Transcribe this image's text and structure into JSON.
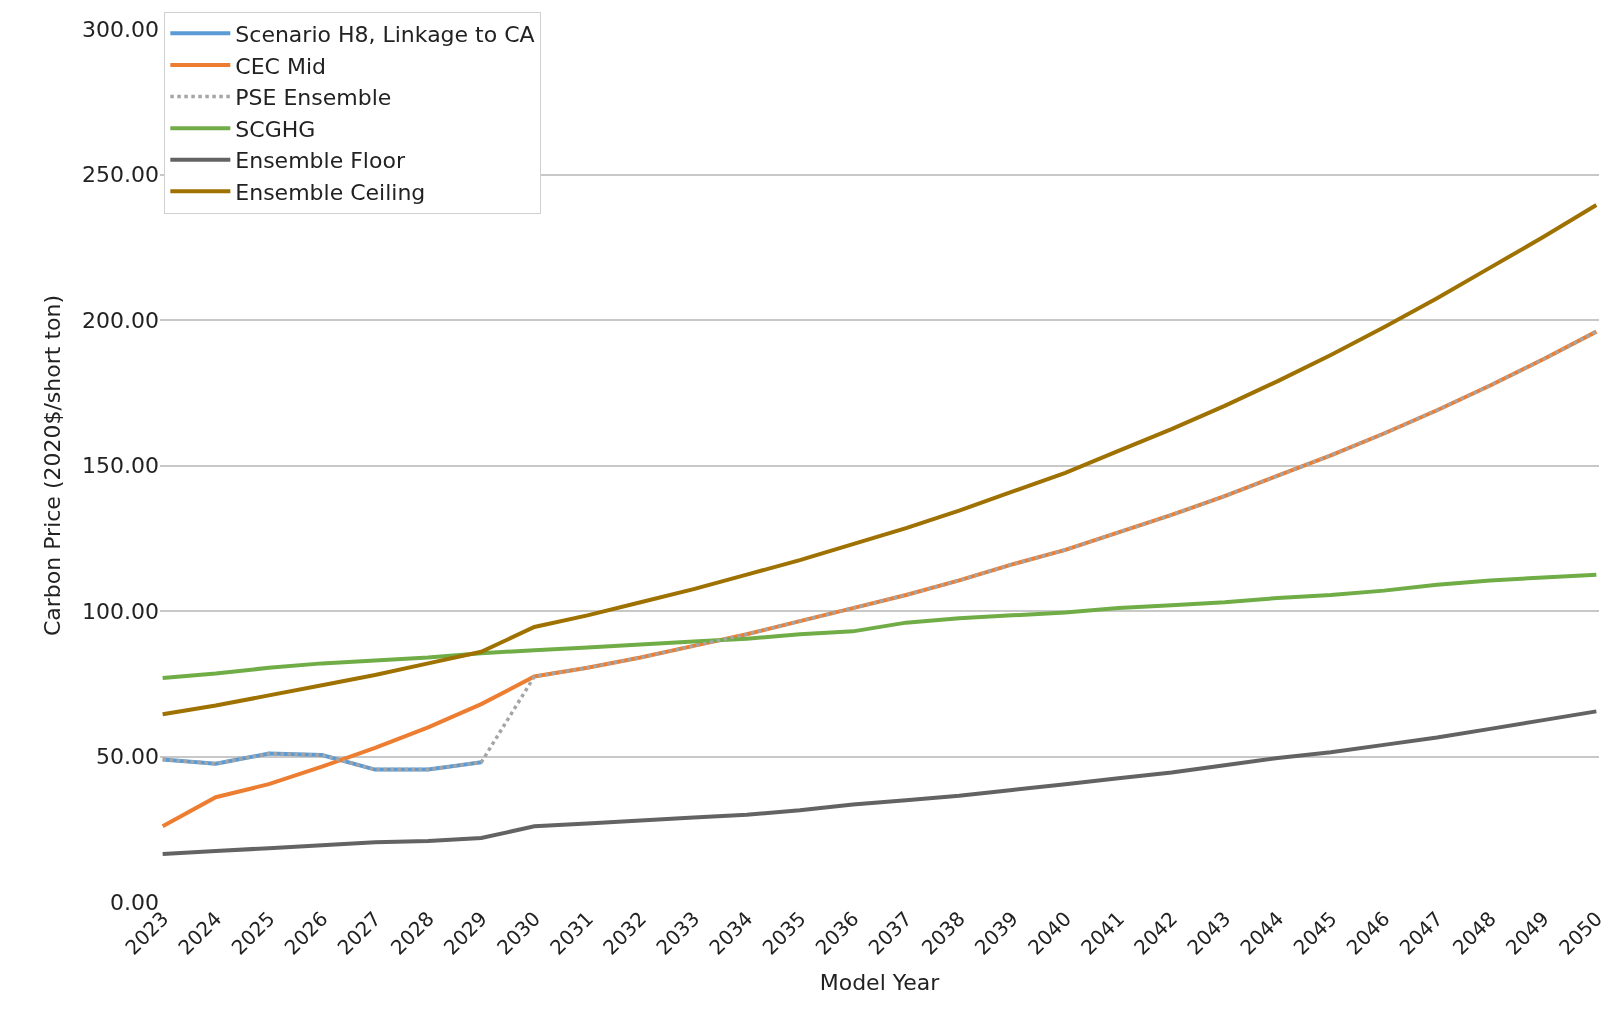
{
  "chart_data": {
    "type": "line",
    "xlabel": "Model Year",
    "ylabel": "Carbon Price (2020$/short ton)",
    "categories": [
      "2023",
      "2024",
      "2025",
      "2026",
      "2027",
      "2028",
      "2029",
      "2030",
      "2031",
      "2032",
      "2033",
      "2034",
      "2035",
      "2036",
      "2037",
      "2038",
      "2039",
      "2040",
      "2041",
      "2042",
      "2043",
      "2044",
      "2045",
      "2046",
      "2047",
      "2048",
      "2049",
      "2050"
    ],
    "series": [
      {
        "name": "Scenario H8, Linkage to CA",
        "color": "#5b9bd5",
        "values": [
          49,
          47.5,
          51,
          50.5,
          45.5,
          45.5,
          48,
          null,
          null,
          null,
          null,
          null,
          null,
          null,
          null,
          null,
          null,
          null,
          null,
          null,
          null,
          null,
          null,
          null,
          null,
          null,
          null,
          null
        ]
      },
      {
        "name": "CEC Mid",
        "color": "#ed7d31",
        "values": [
          26,
          36,
          40.5,
          46.5,
          53,
          60,
          68,
          77.5,
          80.5,
          84,
          88,
          92,
          96.5,
          101,
          105.5,
          110.5,
          116,
          121,
          127,
          133,
          139.5,
          146.5,
          153.5,
          161,
          169,
          177.5,
          186.5,
          196
        ]
      },
      {
        "name": "PSE Ensemble",
        "color": "#a5a5a5",
        "line_style": "dotted",
        "values": [
          49,
          47.5,
          51,
          50.5,
          45.5,
          45.5,
          48,
          77.5,
          80.5,
          84,
          88,
          92,
          96.5,
          101,
          105.5,
          110.5,
          116,
          121,
          127,
          133,
          139.5,
          146.5,
          153.5,
          161,
          169,
          177.5,
          186.5,
          196
        ]
      },
      {
        "name": "SCGHG",
        "color": "#70ad47",
        "values": [
          77,
          78.5,
          80.5,
          82,
          83,
          84,
          85.5,
          86.5,
          87.5,
          88.5,
          89.5,
          90.5,
          92,
          93,
          96,
          97.5,
          98.5,
          99.5,
          101,
          102,
          103,
          104.5,
          105.5,
          107,
          109,
          110.5,
          111.5,
          112.5
        ]
      },
      {
        "name": "Ensemble Floor",
        "color": "#636363",
        "values": [
          16.5,
          17.5,
          18.5,
          19.5,
          20.5,
          21,
          22,
          26,
          27,
          28,
          29,
          30,
          31.5,
          33.5,
          35,
          36.5,
          38.5,
          40.5,
          42.5,
          44.5,
          47,
          49.5,
          51.5,
          54,
          56.5,
          59.5,
          62.5,
          65.5
        ]
      },
      {
        "name": "Ensemble Ceiling",
        "color": "#9e7100",
        "values": [
          64.5,
          67.5,
          71,
          74.5,
          78,
          82,
          86,
          94.5,
          98.5,
          103,
          107.5,
          112.5,
          117.5,
          123,
          128.5,
          134.5,
          141,
          147.5,
          155,
          162.5,
          170.5,
          179,
          188,
          197.5,
          207.5,
          218,
          228.5,
          239.5
        ]
      }
    ],
    "ylim": [
      0,
      300
    ],
    "yticks": [
      {
        "value": 0,
        "label": "0.00"
      },
      {
        "value": 50,
        "label": "50.00"
      },
      {
        "value": 100,
        "label": "100.00"
      },
      {
        "value": 150,
        "label": "150.00"
      },
      {
        "value": 200,
        "label": "200.00"
      },
      {
        "value": 250,
        "label": "250.00"
      },
      {
        "value": 300,
        "label": "300.00"
      }
    ],
    "grid": "y",
    "legend": "top left",
    "line_style": "solid",
    "marker": "none"
  }
}
